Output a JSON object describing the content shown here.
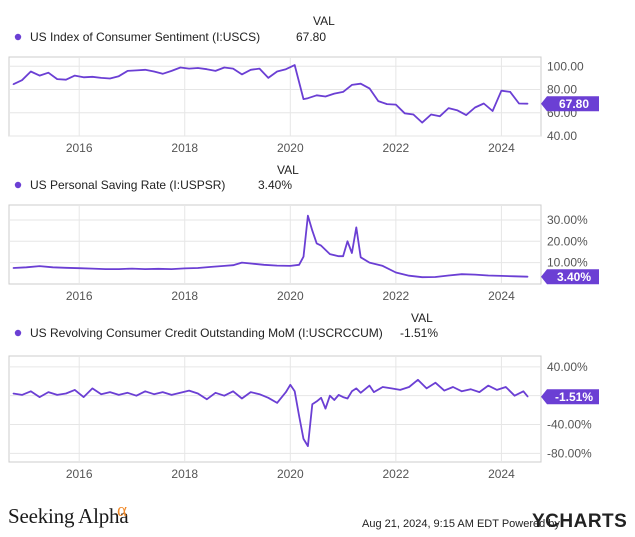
{
  "brand": {
    "left_logo": "Seeking Alpha",
    "left_logo_mark": "α",
    "footer_stamp": "Aug 21, 2024, 9:15 AM EDT Powered by",
    "right_logo": "YCHARTS"
  },
  "colors": {
    "series": "#6b3fd4",
    "badge": "#6b3fd4",
    "grid": "#e6e6e6",
    "plot_border": "#cccccc"
  },
  "chart_data": [
    {
      "type": "line",
      "name": "US Index of Consumer Sentiment (I:USCS)",
      "val_header": "VAL",
      "current_value_label": "67.80",
      "badge_label": "67.80",
      "x": [
        2014.75,
        2014.917,
        2015.083,
        2015.25,
        2015.417,
        2015.583,
        2015.75,
        2015.917,
        2016.083,
        2016.25,
        2016.417,
        2016.583,
        2016.75,
        2016.917,
        2017.083,
        2017.25,
        2017.417,
        2017.583,
        2017.75,
        2017.917,
        2018.083,
        2018.25,
        2018.417,
        2018.583,
        2018.75,
        2018.917,
        2019.083,
        2019.25,
        2019.417,
        2019.583,
        2019.75,
        2019.917,
        2020.083,
        2020.25,
        2020.333,
        2020.5,
        2020.667,
        2020.833,
        2021.0,
        2021.167,
        2021.333,
        2021.5,
        2021.667,
        2021.833,
        2022.0,
        2022.167,
        2022.333,
        2022.5,
        2022.667,
        2022.833,
        2023.0,
        2023.167,
        2023.333,
        2023.5,
        2023.667,
        2023.833,
        2024.0,
        2024.167,
        2024.333,
        2024.5
      ],
      "values": [
        84.5,
        88.0,
        95.5,
        92.0,
        94.5,
        89.0,
        88.5,
        92.0,
        90.5,
        91.0,
        90.0,
        89.5,
        91.5,
        96.0,
        96.5,
        97.0,
        95.5,
        93.5,
        96.0,
        99.0,
        98.0,
        98.5,
        97.5,
        96.0,
        99.0,
        98.0,
        93.0,
        97.0,
        98.0,
        90.0,
        95.5,
        97.5,
        101.0,
        71.8,
        72.5,
        75.0,
        74.0,
        76.5,
        78.0,
        84.0,
        85.0,
        81.0,
        70.0,
        67.5,
        67.0,
        59.5,
        58.5,
        51.5,
        58.5,
        57.0,
        64.0,
        62.0,
        58.0,
        64.5,
        68.0,
        61.5,
        79.0,
        78.0,
        68.0,
        67.8
      ],
      "y_ticks": [
        "100.00",
        "80.00",
        "60.00",
        "40.00"
      ],
      "y_tick_values": [
        100,
        80,
        60,
        40
      ],
      "ylim": [
        40,
        108
      ],
      "x_ticks": [
        "2016",
        "2018",
        "2020",
        "2022",
        "2024"
      ],
      "x_tick_values": [
        2016,
        2018,
        2020,
        2022,
        2024
      ],
      "xlim": [
        2014.67,
        2024.75
      ]
    },
    {
      "type": "line",
      "name": "US Personal Saving Rate (I:USPSR)",
      "val_header": "VAL",
      "current_value_label": "3.40%",
      "badge_label": "3.40%",
      "x": [
        2014.75,
        2015.0,
        2015.25,
        2015.5,
        2015.75,
        2016.0,
        2016.25,
        2016.5,
        2016.75,
        2017.0,
        2017.25,
        2017.5,
        2017.75,
        2018.0,
        2018.25,
        2018.5,
        2018.75,
        2018.917,
        2019.083,
        2019.25,
        2019.5,
        2019.75,
        2020.0,
        2020.167,
        2020.25,
        2020.333,
        2020.417,
        2020.5,
        2020.583,
        2020.75,
        2020.917,
        2021.0,
        2021.083,
        2021.167,
        2021.25,
        2021.333,
        2021.5,
        2021.75,
        2022.0,
        2022.25,
        2022.5,
        2022.75,
        2023.0,
        2023.25,
        2023.5,
        2023.75,
        2024.0,
        2024.25,
        2024.5
      ],
      "values": [
        7.5,
        7.8,
        8.4,
        7.8,
        7.6,
        7.4,
        7.2,
        7.0,
        7.0,
        7.2,
        7.0,
        7.1,
        7.0,
        7.3,
        7.5,
        8.0,
        8.5,
        8.8,
        10.0,
        9.6,
        9.0,
        8.6,
        8.5,
        9.0,
        12.8,
        32.0,
        25.0,
        19.0,
        18.0,
        14.0,
        13.0,
        13.0,
        20.0,
        14.5,
        26.5,
        12.5,
        10.0,
        8.5,
        5.4,
        3.9,
        3.2,
        3.3,
        4.0,
        4.6,
        4.4,
        4.0,
        3.8,
        3.6,
        3.4
      ],
      "y_ticks": [
        "30.00%",
        "20.00%",
        "10.00%"
      ],
      "y_tick_values": [
        30,
        20,
        10
      ],
      "ylim": [
        0,
        37
      ],
      "x_ticks": [
        "2016",
        "2018",
        "2020",
        "2022",
        "2024"
      ],
      "x_tick_values": [
        2016,
        2018,
        2020,
        2022,
        2024
      ],
      "xlim": [
        2014.67,
        2024.75
      ]
    },
    {
      "type": "line",
      "name": "US Revolving Consumer Credit Outstanding MoM (I:USCRCCUM)",
      "val_header": "VAL",
      "current_value_label": "-1.51%",
      "badge_label": "-1.51%",
      "x": [
        2014.75,
        2014.917,
        2015.083,
        2015.25,
        2015.417,
        2015.583,
        2015.75,
        2015.917,
        2016.083,
        2016.25,
        2016.417,
        2016.583,
        2016.75,
        2016.917,
        2017.083,
        2017.25,
        2017.417,
        2017.583,
        2017.75,
        2017.917,
        2018.083,
        2018.25,
        2018.417,
        2018.583,
        2018.75,
        2018.917,
        2019.083,
        2019.25,
        2019.417,
        2019.583,
        2019.75,
        2019.917,
        2020.0,
        2020.083,
        2020.167,
        2020.25,
        2020.333,
        2020.417,
        2020.5,
        2020.583,
        2020.667,
        2020.75,
        2020.833,
        2020.917,
        2021.0,
        2021.083,
        2021.167,
        2021.25,
        2021.333,
        2021.5,
        2021.583,
        2021.75,
        2021.917,
        2022.083,
        2022.25,
        2022.417,
        2022.583,
        2022.75,
        2022.917,
        2023.083,
        2023.25,
        2023.417,
        2023.583,
        2023.75,
        2023.917,
        2024.083,
        2024.25,
        2024.417,
        2024.5
      ],
      "values": [
        3.0,
        1.0,
        6.0,
        -2.0,
        5.0,
        1.0,
        3.0,
        8.0,
        -2.0,
        10.0,
        2.0,
        5.0,
        1.0,
        4.0,
        0.0,
        6.0,
        2.0,
        5.0,
        1.0,
        4.0,
        7.0,
        3.0,
        -5.0,
        4.0,
        0.0,
        6.0,
        -4.0,
        5.0,
        2.0,
        -3.0,
        -10.0,
        5.0,
        15.0,
        6.0,
        -28.0,
        -60.0,
        -70.0,
        -12.0,
        -8.0,
        -3.0,
        -18.0,
        0.0,
        -6.0,
        1.0,
        -2.0,
        -4.0,
        6.0,
        10.0,
        4.0,
        14.0,
        5.0,
        12.0,
        10.0,
        8.0,
        12.0,
        22.0,
        10.0,
        18.0,
        7.0,
        12.0,
        6.0,
        9.0,
        5.0,
        14.0,
        8.0,
        12.0,
        0.0,
        6.0,
        -1.51
      ],
      "y_ticks": [
        "40.00%",
        "0.00%",
        "-40.00%",
        "-80.00%"
      ],
      "y_tick_values": [
        40,
        0,
        -40,
        -80
      ],
      "ylim": [
        -92,
        55
      ],
      "x_ticks": [
        "2016",
        "2018",
        "2020",
        "2022",
        "2024"
      ],
      "x_tick_values": [
        2016,
        2018,
        2020,
        2022,
        2024
      ],
      "xlim": [
        2014.67,
        2024.75
      ]
    }
  ]
}
